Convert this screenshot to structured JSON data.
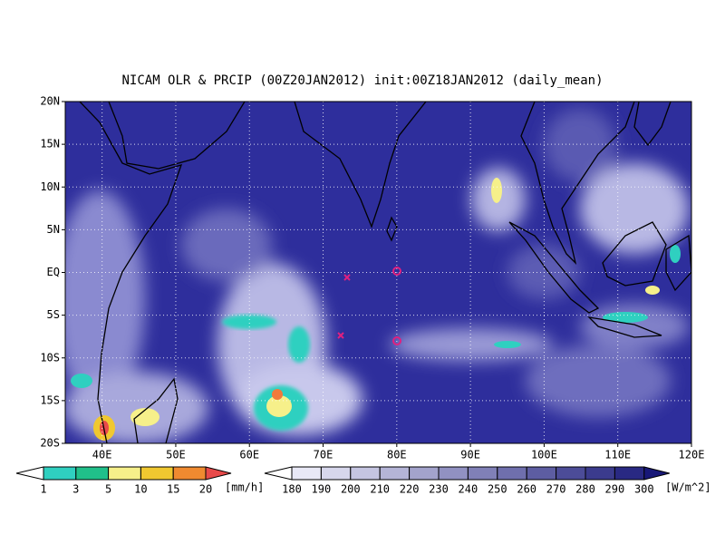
{
  "title": "NICAM OLR & PRCIP (00Z20JAN2012) init:00Z18JAN2012 (daily_mean)",
  "map": {
    "lat_labels": [
      "20N",
      "15N",
      "10N",
      "5N",
      "EQ",
      "5S",
      "10S",
      "15S",
      "20S"
    ],
    "lon_labels": [
      "40E",
      "50E",
      "60E",
      "70E",
      "80E",
      "90E",
      "100E",
      "110E",
      "120E"
    ]
  },
  "precip_legend": {
    "labels": [
      1,
      3,
      5,
      10,
      15,
      20
    ],
    "unit": "[mm/h]"
  },
  "olr_legend": {
    "labels": [
      180,
      190,
      200,
      210,
      220,
      230,
      240,
      250,
      260,
      270,
      280,
      290,
      300
    ],
    "unit": "[W/m^2]"
  }
}
